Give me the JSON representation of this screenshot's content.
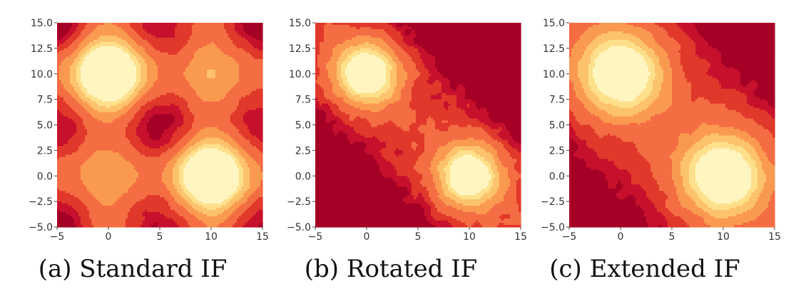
{
  "figure": {
    "colors": {
      "levels": [
        "#a50026",
        "#c7102c",
        "#e0382a",
        "#f46d43",
        "#fa9a50",
        "#fdc26c",
        "#fee08b",
        "#fff5c0"
      ]
    }
  },
  "chart_data": [
    {
      "type": "heatmap",
      "caption": "(a) Standard IF",
      "xlim": [
        -5,
        15
      ],
      "ylim": [
        -5,
        15
      ],
      "x_ticks": [
        "−5",
        "0",
        "5",
        "10",
        "15"
      ],
      "y_ticks": [
        "15.0",
        "12.5",
        "10.0",
        "7.5",
        "5.0",
        "2.5",
        "0.0",
        "−2.5",
        "−5.0"
      ],
      "centers": [
        [
          0,
          10
        ],
        [
          10,
          0
        ]
      ],
      "colormap": "YlOrRd-reversed",
      "grid": false,
      "pattern": "axis-aligned cross bands through each cluster"
    },
    {
      "type": "heatmap",
      "caption": "(b) Rotated IF",
      "xlim": [
        -5,
        15
      ],
      "ylim": [
        -5,
        15
      ],
      "x_ticks": [
        "−5",
        "0",
        "5",
        "10",
        "15"
      ],
      "y_ticks": [
        "15.0",
        "12.5",
        "10.0",
        "7.5",
        "5.0",
        "2.5",
        "0.0",
        "−2.5",
        "−5.0"
      ],
      "centers": [
        [
          0,
          10
        ],
        [
          10,
          0
        ]
      ],
      "colormap": "YlOrRd-reversed",
      "grid": false,
      "pattern": "diagonal band connecting clusters"
    },
    {
      "type": "heatmap",
      "caption": "(c) Extended IF",
      "xlim": [
        -5,
        15
      ],
      "ylim": [
        -5,
        15
      ],
      "x_ticks": [
        "−5",
        "0",
        "5",
        "10",
        "15"
      ],
      "y_ticks": [
        "15.0",
        "12.5",
        "10.0",
        "7.5",
        "5.0",
        "2.5",
        "0.0",
        "−2.5",
        "−5.0"
      ],
      "centers": [
        [
          0,
          10
        ],
        [
          10,
          0
        ]
      ],
      "colormap": "YlOrRd-reversed",
      "grid": false,
      "pattern": "broad diagonal band, smooth large clusters"
    }
  ]
}
